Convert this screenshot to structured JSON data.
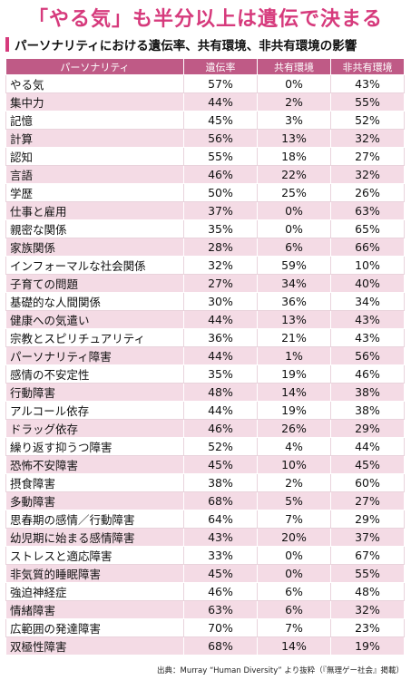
{
  "title": "「やる気」も半分以上は遺伝で決まる",
  "subtitle": "パーソナリティにおける遺伝率、共有環境、非共有環境の影響",
  "headers": [
    "パーソナリティ",
    "遺伝率",
    "共有環境",
    "非共有環境"
  ],
  "rows": [
    [
      "やる気",
      "57%",
      "0%",
      "43%"
    ],
    [
      "集中力",
      "44%",
      "2%",
      "55%"
    ],
    [
      "記憶",
      "45%",
      "3%",
      "52%"
    ],
    [
      "計算",
      "56%",
      "13%",
      "32%"
    ],
    [
      "認知",
      "55%",
      "18%",
      "27%"
    ],
    [
      "言語",
      "46%",
      "22%",
      "32%"
    ],
    [
      "学歴",
      "50%",
      "25%",
      "26%"
    ],
    [
      "仕事と雇用",
      "37%",
      "0%",
      "63%"
    ],
    [
      "親密な関係",
      "35%",
      "0%",
      "65%"
    ],
    [
      "家族関係",
      "28%",
      "6%",
      "66%"
    ],
    [
      "インフォーマルな社会関係",
      "32%",
      "59%",
      "10%"
    ],
    [
      "子育ての問題",
      "27%",
      "34%",
      "40%"
    ],
    [
      "基礎的な人間関係",
      "30%",
      "36%",
      "34%"
    ],
    [
      "健康への気遣い",
      "44%",
      "13%",
      "43%"
    ],
    [
      "宗教とスピリチュアリティ",
      "36%",
      "21%",
      "43%"
    ],
    [
      "パーソナリティ障害",
      "44%",
      "1%",
      "56%"
    ],
    [
      "感情の不安定性",
      "35%",
      "19%",
      "46%"
    ],
    [
      "行動障害",
      "48%",
      "14%",
      "38%"
    ],
    [
      "アルコール依存",
      "44%",
      "19%",
      "38%"
    ],
    [
      "ドラッグ依存",
      "46%",
      "26%",
      "29%"
    ],
    [
      "繰り返す抑うつ障害",
      "52%",
      "4%",
      "44%"
    ],
    [
      "恐怖不安障害",
      "45%",
      "10%",
      "45%"
    ],
    [
      "摂食障害",
      "38%",
      "2%",
      "60%"
    ],
    [
      "多動障害",
      "68%",
      "5%",
      "27%"
    ],
    [
      "思春期の感情／行動障害",
      "64%",
      "7%",
      "29%"
    ],
    [
      "幼児期に始まる感情障害",
      "43%",
      "20%",
      "37%"
    ],
    [
      "ストレスと適応障害",
      "33%",
      "0%",
      "67%"
    ],
    [
      "非気質的睡眠障害",
      "45%",
      "0%",
      "55%"
    ],
    [
      "強迫神経症",
      "46%",
      "6%",
      "48%"
    ],
    [
      "情緒障害",
      "63%",
      "6%",
      "32%"
    ],
    [
      "広範囲の発達障害",
      "70%",
      "7%",
      "23%"
    ],
    [
      "双極性障害",
      "68%",
      "14%",
      "19%"
    ]
  ],
  "source": "出典：Murray “Human Diversity” より抜粋（『無理ゲー社会』掲載）"
}
